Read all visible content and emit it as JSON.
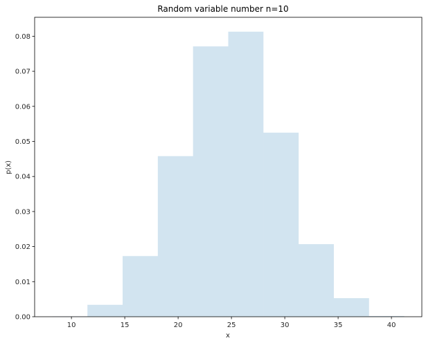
{
  "chart_data": {
    "type": "bar",
    "title": "Random variable number n=10",
    "xlabel": "x",
    "ylabel": "p(x)",
    "bin_edges": [
      8.2,
      11.5,
      14.8,
      18.1,
      21.4,
      24.7,
      28.0,
      31.3,
      34.6,
      37.9,
      41.2
    ],
    "values": [
      0.0001,
      0.0034,
      0.0173,
      0.0458,
      0.0771,
      0.0813,
      0.0525,
      0.0207,
      0.0053,
      0.0002
    ],
    "xlim": [
      6.55,
      42.85
    ],
    "ylim": [
      0,
      0.0854
    ],
    "xticks": [
      10,
      15,
      20,
      25,
      30,
      35,
      40
    ],
    "xtick_labels": [
      "10",
      "15",
      "20",
      "25",
      "30",
      "35",
      "40"
    ],
    "yticks": [
      0,
      0.01,
      0.02,
      0.03,
      0.04,
      0.05,
      0.06,
      0.07,
      0.08
    ],
    "ytick_labels": [
      "0.00",
      "0.01",
      "0.02",
      "0.03",
      "0.04",
      "0.05",
      "0.06",
      "0.07",
      "0.08"
    ],
    "grid": false,
    "bar_color": "#1f77b4"
  }
}
